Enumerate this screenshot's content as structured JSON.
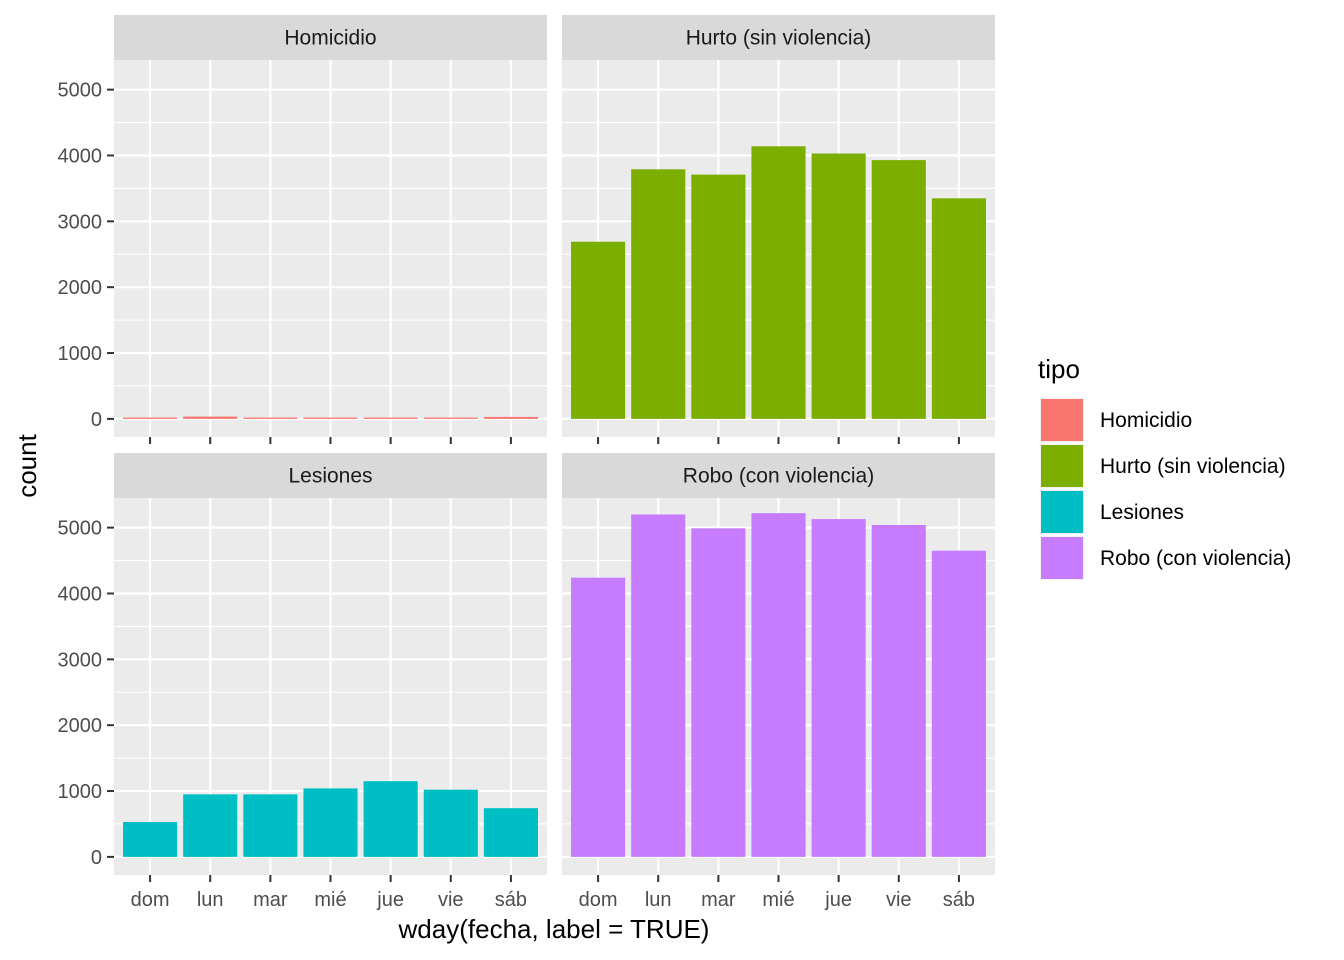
{
  "chart_data": {
    "type": "bar",
    "faceted": true,
    "facet_layout": "2x2",
    "xlabel": "wday(fecha, label = TRUE)",
    "ylabel": "count",
    "categories": [
      "dom",
      "lun",
      "mar",
      "mié",
      "jue",
      "vie",
      "sáb"
    ],
    "ylim": [
      0,
      5500
    ],
    "yticks": [
      0,
      1000,
      2000,
      3000,
      4000,
      5000
    ],
    "grid": true,
    "legend": {
      "title": "tipo",
      "placement": "right",
      "entries": [
        "Homicidio",
        "Hurto (sin violencia)",
        "Lesiones",
        "Robo (con violencia)"
      ]
    },
    "series": [
      {
        "name": "Homicidio",
        "color": "#F8766D",
        "values": [
          20,
          35,
          20,
          20,
          20,
          20,
          30
        ]
      },
      {
        "name": "Hurto (sin violencia)",
        "color": "#7CAE00",
        "values": [
          2690,
          3790,
          3710,
          4140,
          4030,
          3930,
          3350
        ]
      },
      {
        "name": "Lesiones",
        "color": "#00BFC4",
        "values": [
          530,
          950,
          950,
          1040,
          1150,
          1020,
          740
        ]
      },
      {
        "name": "Robo (con violencia)",
        "color": "#C77CFF",
        "values": [
          4240,
          5200,
          4990,
          5220,
          5130,
          5040,
          4650
        ]
      }
    ]
  }
}
